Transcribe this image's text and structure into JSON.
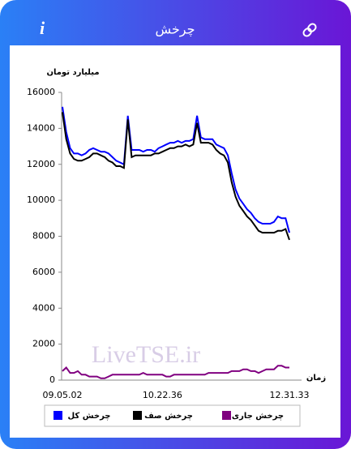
{
  "header": {
    "title": "چرخش",
    "info": "i"
  },
  "chart_data": {
    "type": "line",
    "ylabel": "میلیارد تومان",
    "xlabel": "زمان",
    "watermark": "LiveTSE.ir",
    "categories": [
      "09.05.02",
      null,
      null,
      null,
      null,
      null,
      null,
      null,
      null,
      null,
      null,
      null,
      null,
      null,
      null,
      null,
      null,
      null,
      null,
      null,
      null,
      null,
      null,
      null,
      null,
      null,
      "10.22.36",
      null,
      null,
      null,
      null,
      null,
      null,
      null,
      null,
      null,
      null,
      null,
      null,
      null,
      null,
      null,
      null,
      null,
      null,
      null,
      null,
      null,
      null,
      null,
      null,
      null,
      null,
      null,
      null,
      null,
      null,
      null,
      null,
      "12.31.33"
    ],
    "series": [
      {
        "name": "چرخش کل",
        "color": "#0000ff",
        "values": [
          15200,
          13800,
          12900,
          12600,
          12600,
          12500,
          12600,
          12800,
          12900,
          12800,
          12700,
          12700,
          12600,
          12400,
          12200,
          12100,
          12000,
          14700,
          12800,
          12800,
          12800,
          12700,
          12800,
          12800,
          12700,
          12900,
          13000,
          13100,
          13200,
          13200,
          13300,
          13200,
          13300,
          13300,
          13400,
          14700,
          13500,
          13400,
          13400,
          13400,
          13100,
          13000,
          12900,
          12500,
          11500,
          10600,
          10100,
          9800,
          9500,
          9300,
          9000,
          8800,
          8700,
          8700,
          8700,
          8800,
          9100,
          9000,
          9000,
          8200
        ]
      },
      {
        "name": "چرخش صف",
        "color": "#000000",
        "values": [
          14900,
          13400,
          12600,
          12300,
          12200,
          12200,
          12300,
          12400,
          12600,
          12600,
          12500,
          12400,
          12200,
          12100,
          11900,
          11900,
          11800,
          14500,
          12400,
          12500,
          12500,
          12500,
          12500,
          12500,
          12600,
          12600,
          12700,
          12800,
          12900,
          12900,
          13000,
          13000,
          13100,
          13000,
          13100,
          14300,
          13200,
          13200,
          13200,
          13100,
          12800,
          12600,
          12500,
          12100,
          11000,
          10200,
          9700,
          9400,
          9100,
          8900,
          8600,
          8300,
          8200,
          8200,
          8200,
          8200,
          8300,
          8300,
          8400,
          7800
        ]
      },
      {
        "name": "چرخش جاری",
        "color": "#800080",
        "values": [
          500,
          700,
          400,
          400,
          500,
          300,
          300,
          200,
          200,
          200,
          100,
          100,
          200,
          300,
          300,
          300,
          300,
          300,
          300,
          300,
          300,
          400,
          300,
          300,
          300,
          300,
          300,
          200,
          200,
          300,
          300,
          300,
          300,
          300,
          300,
          300,
          300,
          300,
          400,
          400,
          400,
          400,
          400,
          400,
          500,
          500,
          500,
          600,
          600,
          500,
          500,
          400,
          500,
          600,
          600,
          600,
          800,
          800,
          700,
          700
        ]
      }
    ],
    "ylim": [
      0,
      16000
    ],
    "yticks": [
      0,
      2000,
      4000,
      6000,
      8000,
      10000,
      12000,
      14000,
      16000
    ],
    "grid": false
  }
}
